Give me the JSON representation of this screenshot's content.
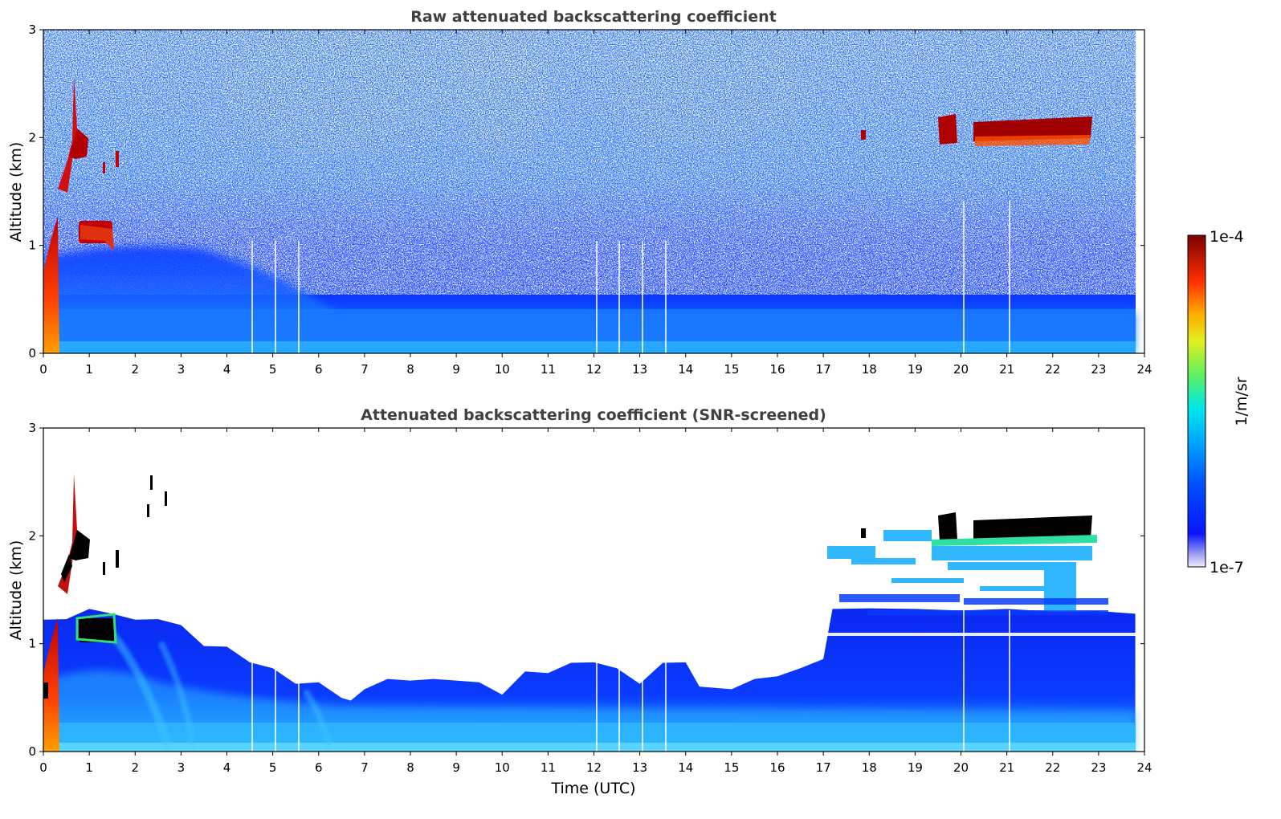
{
  "colors": {
    "bg": "#ffffff",
    "axis": "#000000",
    "title": "#404040"
  },
  "colorbar": {
    "max_label": "1e-4",
    "min_label": "1e-7",
    "unit_label": "1/m/sr",
    "scale": "log",
    "range": [
      1e-07,
      0.0001
    ],
    "colormap": "jet-like (white → light blue → blue → cyan → green → yellow → orange → red → dark red)"
  },
  "xaxis": {
    "label": "Time (UTC)",
    "ticks": [
      "0",
      "1",
      "2",
      "3",
      "4",
      "5",
      "6",
      "7",
      "8",
      "9",
      "10",
      "11",
      "12",
      "13",
      "14",
      "15",
      "16",
      "17",
      "18",
      "19",
      "20",
      "21",
      "22",
      "23",
      "24"
    ],
    "range": [
      0,
      24
    ]
  },
  "chart_data": [
    {
      "type": "heatmap",
      "title": "Raw attenuated backscattering coefficient",
      "xlabel": "",
      "ylabel": "Altitude (km)",
      "xlim": [
        0,
        24
      ],
      "ylim": [
        0,
        3
      ],
      "yticks": [
        "0",
        "1",
        "2",
        "3"
      ],
      "value_unit": "1/m/sr",
      "features": [
        {
          "name": "boundary layer (high values near ground)",
          "time": [
            0,
            24
          ],
          "altitude": [
            0,
            0.4
          ]
        },
        {
          "name": "low cloud near surface",
          "time": [
            0,
            0.35
          ],
          "altitude": [
            0,
            1.2
          ]
        },
        {
          "name": "cloud layer",
          "time": [
            0.5,
            1.5
          ],
          "altitude": [
            1.0,
            2.6
          ]
        },
        {
          "name": "cloud layer",
          "time": [
            19.5,
            22.9
          ],
          "altitude": [
            1.95,
            2.2
          ]
        },
        {
          "name": "noisy upper region",
          "time": [
            0,
            24
          ],
          "altitude": [
            0.5,
            3.0
          ]
        }
      ],
      "data_gaps_time": [
        4.55,
        5.05,
        5.55,
        12.05,
        12.55,
        13.05,
        13.55,
        20.05,
        21.05
      ]
    },
    {
      "type": "heatmap",
      "title": "Attenuated backscattering coefficient (SNR-screened)",
      "xlabel": "Time (UTC)",
      "ylabel": "Altitude (km)",
      "xlim": [
        0,
        24
      ],
      "ylim": [
        0,
        3
      ],
      "yticks": [
        "0",
        "1",
        "2",
        "3"
      ],
      "value_unit": "1/m/sr",
      "screened_top_km": {
        "time": [
          0,
          0.5,
          1,
          1.5,
          2,
          2.5,
          3,
          3.5,
          4,
          4.5,
          5,
          5.5,
          6,
          6.5,
          6.7,
          7,
          7.5,
          8,
          8.5,
          9,
          9.5,
          10,
          10.5,
          11,
          11.5,
          12,
          12.5,
          13,
          13.5,
          14,
          14.3,
          15,
          15.5,
          16,
          16.5,
          17,
          17.2,
          18,
          19,
          20,
          21,
          22,
          23,
          23.8
        ],
        "altitude": [
          1.2,
          1.25,
          1.3,
          1.3,
          1.2,
          1.25,
          1.15,
          1.0,
          0.95,
          0.85,
          0.75,
          0.65,
          0.62,
          0.52,
          0.45,
          0.6,
          0.65,
          0.68,
          0.65,
          0.68,
          0.62,
          0.55,
          0.72,
          0.75,
          0.8,
          0.85,
          0.75,
          0.65,
          0.8,
          0.85,
          0.58,
          0.6,
          0.65,
          0.72,
          0.75,
          0.88,
          1.3,
          1.35,
          1.3,
          1.33,
          1.3,
          1.32,
          1.28,
          1.3
        ]
      },
      "features": [
        {
          "name": "cloud layer",
          "time": [
            19.5,
            22.9
          ],
          "altitude": [
            1.95,
            2.2
          ]
        },
        {
          "name": "cloud layer",
          "time": [
            0.5,
            1.5
          ],
          "altitude": [
            1.0,
            2.6
          ]
        },
        {
          "name": "aerosol filaments",
          "time": [
            17.0,
            23.0
          ],
          "altitude": [
            1.3,
            2.05
          ]
        }
      ],
      "data_gaps_time": [
        4.55,
        5.05,
        5.55,
        12.05,
        12.55,
        13.05,
        13.55,
        20.05,
        21.05
      ]
    }
  ]
}
